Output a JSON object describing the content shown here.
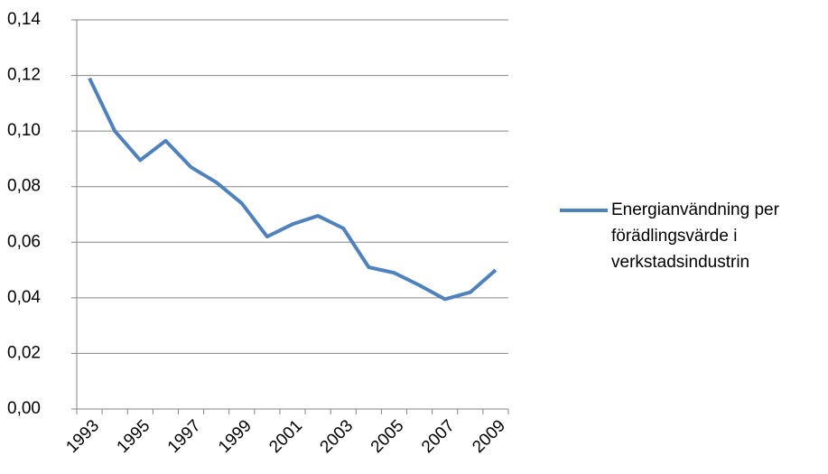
{
  "chart_data": {
    "type": "line",
    "categories": [
      "1993",
      null,
      "1995",
      null,
      "1997",
      null,
      "1999",
      null,
      "2001",
      null,
      "2003",
      null,
      "2005",
      null,
      "2007",
      null,
      "2009"
    ],
    "series": [
      {
        "name": "Energianvändning per förädlingsvärde i verkstadsindustrin",
        "color": "#4f81bd",
        "values": [
          0.119,
          0.1,
          0.0895,
          0.0965,
          0.087,
          0.0815,
          0.074,
          0.062,
          0.0665,
          0.0695,
          0.065,
          0.051,
          0.049,
          0.0445,
          0.0395,
          0.042,
          0.05
        ]
      }
    ],
    "ylim": [
      0,
      0.14
    ],
    "yticks": [
      {
        "value": 0,
        "label": "0,00"
      },
      {
        "value": 0.02,
        "label": "0,02"
      },
      {
        "value": 0.04,
        "label": "0,04"
      },
      {
        "value": 0.06,
        "label": "0,06"
      },
      {
        "value": 0.08,
        "label": "0,08"
      },
      {
        "value": 0.1,
        "label": "0,10"
      },
      {
        "value": 0.12,
        "label": "0,12"
      },
      {
        "value": 0.14,
        "label": "0,14"
      }
    ],
    "grid": true,
    "legend": "right"
  }
}
